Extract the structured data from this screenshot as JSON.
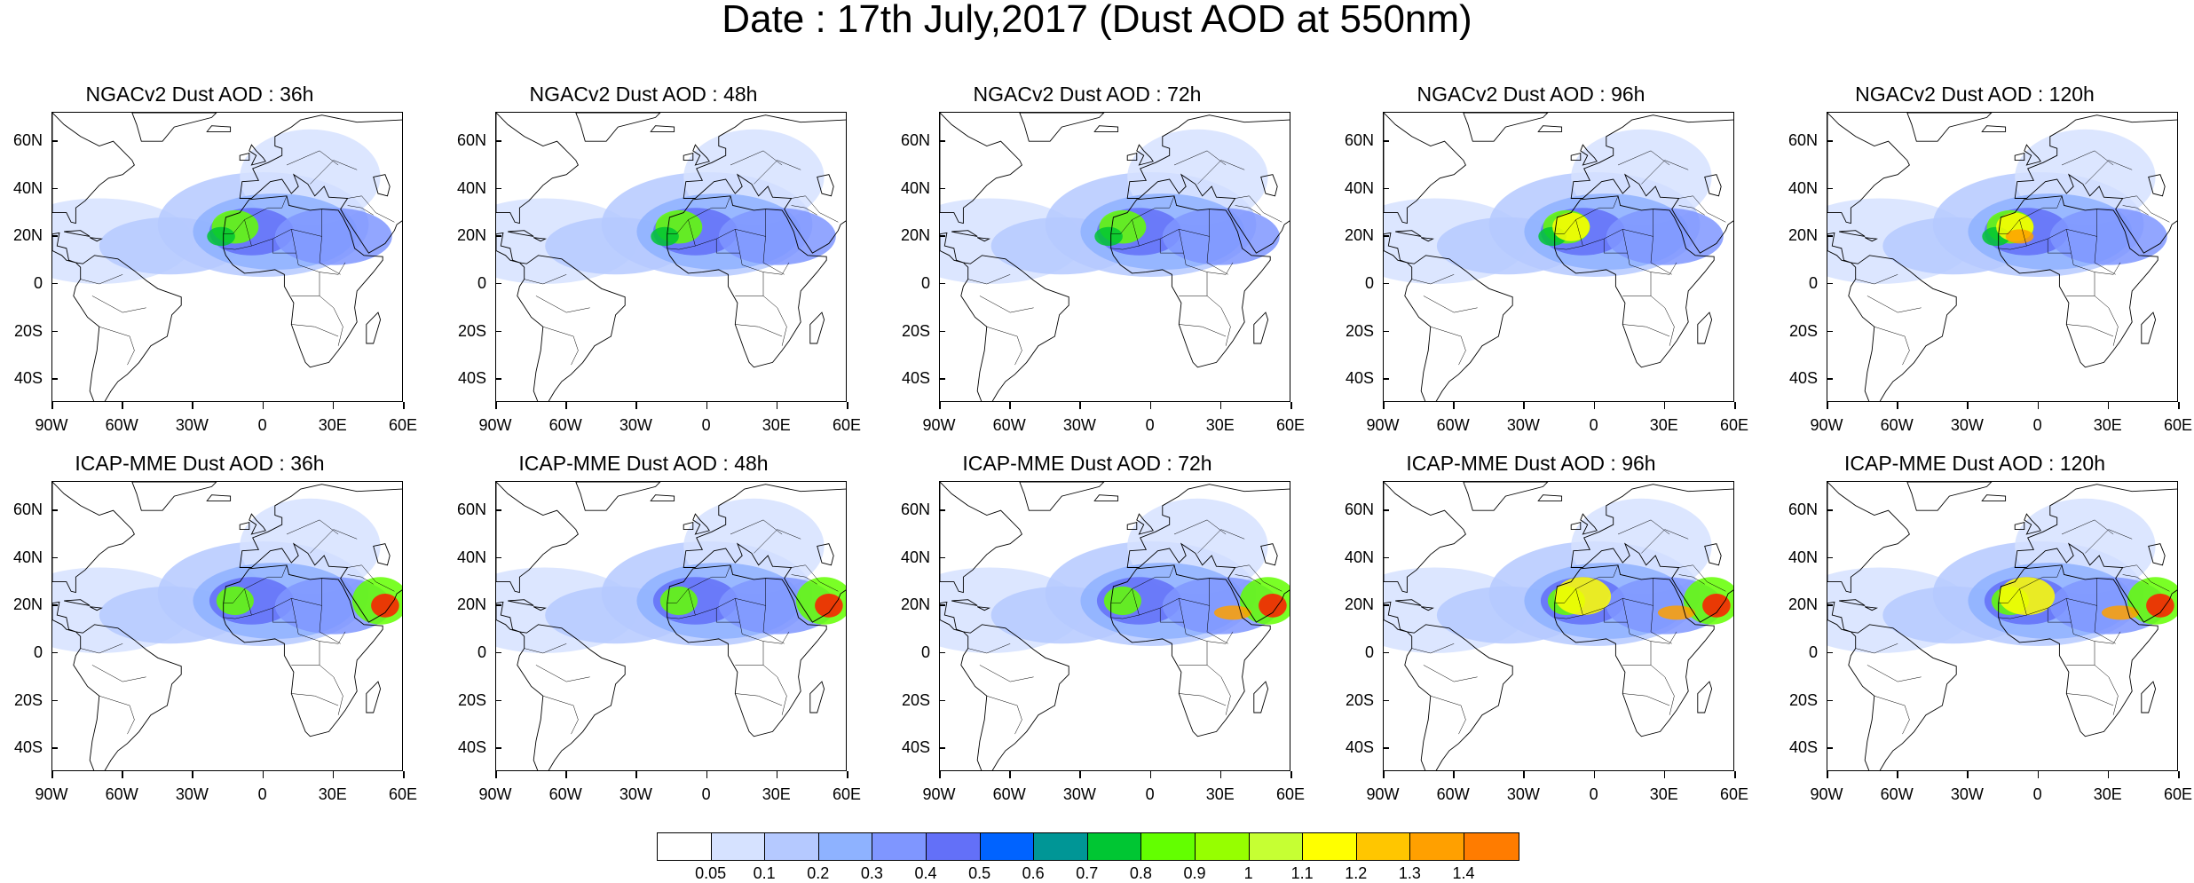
{
  "title": "Date : 17th July,2017 (Dust AOD at 550nm)",
  "lat_labels": [
    "60N",
    "40N",
    "20N",
    "0",
    "20S",
    "40S"
  ],
  "lon_labels": [
    "90W",
    "60W",
    "30W",
    "0",
    "30E",
    "60E"
  ],
  "map_extent": {
    "lon": [
      -90,
      60
    ],
    "lat": [
      -50,
      72
    ]
  },
  "panels": [
    {
      "title": "NGACv2 Dust AOD : 36h",
      "model": "NGACv2",
      "lead": "36h"
    },
    {
      "title": "NGACv2 Dust AOD : 48h",
      "model": "NGACv2",
      "lead": "48h"
    },
    {
      "title": "NGACv2 Dust AOD : 72h",
      "model": "NGACv2",
      "lead": "72h"
    },
    {
      "title": "NGACv2 Dust AOD : 96h",
      "model": "NGACv2",
      "lead": "96h"
    },
    {
      "title": "NGACv2 Dust AOD : 120h",
      "model": "NGACv2",
      "lead": "120h"
    },
    {
      "title": "ICAP-MME Dust AOD : 36h",
      "model": "ICAP-MME",
      "lead": "36h"
    },
    {
      "title": "ICAP-MME Dust AOD : 48h",
      "model": "ICAP-MME",
      "lead": "48h"
    },
    {
      "title": "ICAP-MME Dust AOD : 72h",
      "model": "ICAP-MME",
      "lead": "72h"
    },
    {
      "title": "ICAP-MME Dust AOD : 96h",
      "model": "ICAP-MME",
      "lead": "96h"
    },
    {
      "title": "ICAP-MME Dust AOD : 120h",
      "model": "ICAP-MME",
      "lead": "120h"
    }
  ],
  "colorbar": {
    "labels": [
      "0.05",
      "0.1",
      "0.2",
      "0.3",
      "0.4",
      "0.5",
      "0.6",
      "0.7",
      "0.8",
      "0.9",
      "1",
      "1.1",
      "1.2",
      "1.3",
      "1.4"
    ],
    "colors": [
      "#ffffff",
      "#d6e2ff",
      "#b5c9ff",
      "#8eb2ff",
      "#7f96ff",
      "#6370f8",
      "#0063ff",
      "#009696",
      "#00c633",
      "#63ff00",
      "#96ff00",
      "#c6ff33",
      "#ffff00",
      "#ffc600",
      "#ffa000",
      "#ff7c00",
      "#ff1900"
    ]
  }
}
